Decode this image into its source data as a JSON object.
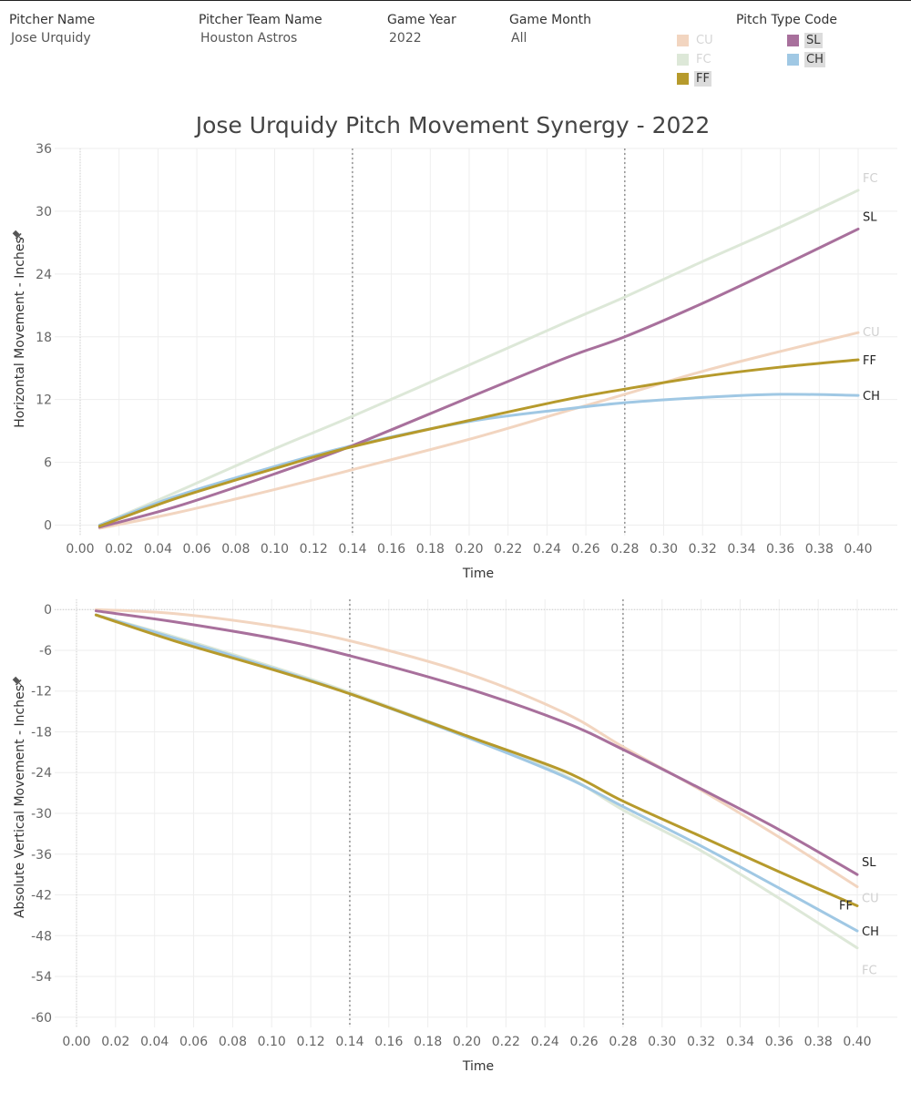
{
  "filters": {
    "pitcher_name": {
      "label": "Pitcher Name",
      "value": "Jose Urquidy"
    },
    "team_name": {
      "label": "Pitcher Team Name",
      "value": "Houston Astros"
    },
    "game_year": {
      "label": "Game Year",
      "value": "2022"
    },
    "game_month": {
      "label": "Game Month",
      "value": "All"
    }
  },
  "legend": {
    "title": "Pitch Type Code",
    "items": [
      {
        "code": "CU",
        "color": "#f2d5c0",
        "dimmed": true
      },
      {
        "code": "FC",
        "color": "#dde8d8",
        "dimmed": true
      },
      {
        "code": "FF",
        "color": "#b69a2c",
        "dimmed": false
      },
      {
        "code": "SL",
        "color": "#a8709c",
        "dimmed": false
      },
      {
        "code": "CH",
        "color": "#a0c8e4",
        "dimmed": false
      }
    ]
  },
  "chart_data": [
    {
      "type": "line",
      "title": "Jose Urquidy Pitch Movement Synergy - 2022",
      "xlabel": "Time",
      "ylabel": "Horizontal Movement - Inches",
      "xlim": [
        0.0,
        0.4
      ],
      "ylim": [
        -1,
        36
      ],
      "x_ticks": [
        "0.00",
        "0.02",
        "0.04",
        "0.06",
        "0.08",
        "0.10",
        "0.12",
        "0.14",
        "0.16",
        "0.18",
        "0.20",
        "0.22",
        "0.24",
        "0.26",
        "0.28",
        "0.30",
        "0.32",
        "0.34",
        "0.36",
        "0.38",
        "0.40"
      ],
      "y_ticks": [
        0,
        6,
        12,
        18,
        24,
        30,
        36
      ],
      "reference_lines_x": [
        0.14,
        0.28
      ],
      "x": [
        0.01,
        0.05,
        0.1,
        0.14,
        0.2,
        0.25,
        0.28,
        0.32,
        0.36,
        0.4
      ],
      "series": [
        {
          "name": "FC",
          "dimmed": true,
          "values": [
            0.0,
            3.2,
            7.3,
            10.4,
            15.3,
            19.4,
            21.8,
            25.2,
            28.5,
            32.0
          ]
        },
        {
          "name": "CU",
          "dimmed": true,
          "values": [
            -0.3,
            1.2,
            3.4,
            5.3,
            8.2,
            10.9,
            12.5,
            14.7,
            16.6,
            18.4
          ]
        },
        {
          "name": "CH",
          "dimmed": false,
          "values": [
            0.0,
            2.8,
            5.6,
            7.6,
            9.9,
            11.1,
            11.7,
            12.2,
            12.5,
            12.4
          ]
        },
        {
          "name": "SL",
          "dimmed": false,
          "values": [
            -0.2,
            1.8,
            4.9,
            7.6,
            12.2,
            16.0,
            18.0,
            21.2,
            24.7,
            28.3
          ]
        },
        {
          "name": "FF",
          "dimmed": false,
          "values": [
            -0.1,
            2.6,
            5.4,
            7.5,
            10.0,
            12.0,
            13.0,
            14.2,
            15.1,
            15.8
          ]
        }
      ]
    },
    {
      "type": "line",
      "xlabel": "Time",
      "ylabel": "Absolute Vertical Movement - Inches",
      "xlim": [
        0.0,
        0.4
      ],
      "ylim": [
        -61.5,
        1.5
      ],
      "x_ticks": [
        "0.00",
        "0.02",
        "0.04",
        "0.06",
        "0.08",
        "0.10",
        "0.12",
        "0.14",
        "0.16",
        "0.18",
        "0.20",
        "0.22",
        "0.24",
        "0.26",
        "0.28",
        "0.30",
        "0.32",
        "0.34",
        "0.36",
        "0.38",
        "0.40"
      ],
      "y_ticks": [
        0,
        -6,
        -12,
        -18,
        -24,
        -30,
        -36,
        -42,
        -48,
        -54,
        -60
      ],
      "reference_lines_x": [
        0.14,
        0.28
      ],
      "x": [
        0.01,
        0.05,
        0.1,
        0.14,
        0.2,
        0.25,
        0.28,
        0.32,
        0.36,
        0.4
      ],
      "series": [
        {
          "name": "FC",
          "dimmed": true,
          "values": [
            -0.8,
            -4.0,
            -8.4,
            -12.2,
            -18.6,
            -24.4,
            -29.5,
            -35.5,
            -42.5,
            -49.8
          ]
        },
        {
          "name": "CU",
          "dimmed": true,
          "values": [
            0.0,
            -0.6,
            -2.4,
            -4.6,
            -9.4,
            -15.2,
            -20.2,
            -26.6,
            -33.5,
            -40.8
          ]
        },
        {
          "name": "CH",
          "dimmed": false,
          "values": [
            -0.8,
            -4.2,
            -8.6,
            -12.4,
            -18.8,
            -24.6,
            -29.0,
            -34.8,
            -41.0,
            -47.3
          ]
        },
        {
          "name": "SL",
          "dimmed": false,
          "values": [
            -0.2,
            -1.8,
            -4.2,
            -6.8,
            -11.6,
            -16.6,
            -20.6,
            -26.4,
            -32.4,
            -39.0
          ]
        },
        {
          "name": "FF",
          "dimmed": false,
          "values": [
            -0.8,
            -4.6,
            -8.8,
            -12.4,
            -18.6,
            -23.8,
            -28.2,
            -33.4,
            -38.6,
            -43.6
          ]
        }
      ]
    }
  ]
}
